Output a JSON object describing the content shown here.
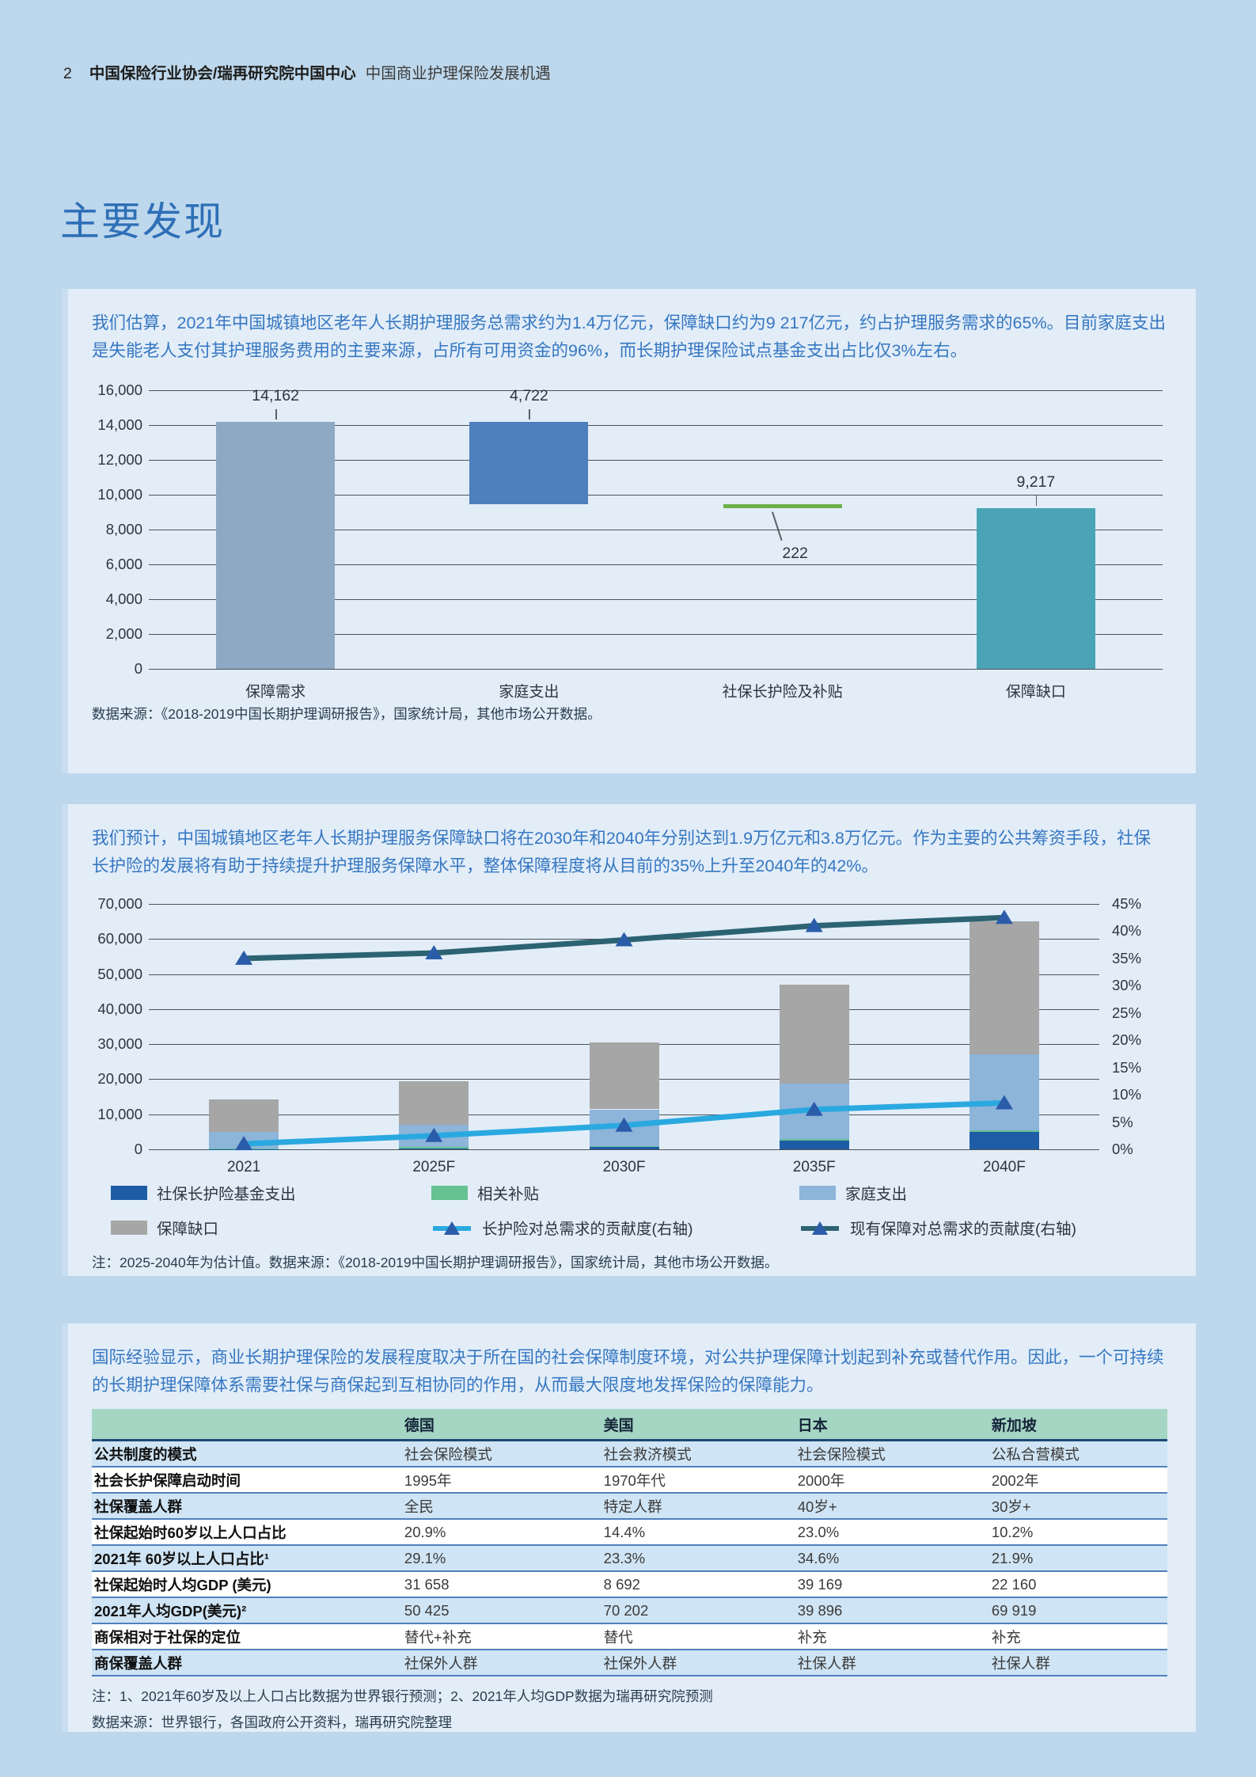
{
  "header": {
    "page_number": "2",
    "org": "中国保险行业协会/瑞再研究院中国中心",
    "doc_title": "中国商业护理保险发展机遇",
    "section_title": "主要发现"
  },
  "sections": [
    {
      "paragraph": "我们估算，2021年中国城镇地区老年人长期护理服务总需求约为1.4万亿元，保障缺口约为9 217亿元，约占护理服务需求的65%。目前家庭支出是失能老人支付其护理服务费用的主要来源，占所有可用资金的96%，而长期护理保险试点基金支出占比仅3%左右。",
      "source": "数据来源：《2018-2019中国长期护理调研报告》，国家统计局，其他市场公开数据。"
    },
    {
      "paragraph": "我们预计，中国城镇地区老年人长期护理服务保障缺口将在2030年和2040年分别达到1.9万亿元和3.8万亿元。作为主要的公共筹资手段，社保长护险的发展将有助于持续提升护理服务保障水平，整体保障程度将从目前的35%上升至2040年的42%。",
      "note": "注：2025-2040年为估计值。数据来源：《2018-2019中国长期护理调研报告》，国家统计局，其他市场公开数据。"
    },
    {
      "paragraph": "国际经验显示，商业长期护理保险的发展程度取决于所在国的社会保障制度环境，对公共护理保障计划起到补充或替代作用。因此，一个可持续的长期护理保障体系需要社保与商保起到互相协同的作用，从而最大限度地发挥保险的保障能力。",
      "note": "注：1、2021年60岁及以上人口占比数据为世界银行预测；2、2021年人均GDP数据为瑞再研究院预测",
      "source": "数据来源：世界银行，各国政府公开资料，瑞再研究院整理",
      "table": {
        "columns": [
          "",
          "德国",
          "美国",
          "日本",
          "新加坡"
        ],
        "rows": [
          [
            "公共制度的模式",
            "社会保险模式",
            "社会救济模式",
            "社会保险模式",
            "公私合营模式"
          ],
          [
            "社会长护保障启动时间",
            "1995年",
            "1970年代",
            "2000年",
            "2002年"
          ],
          [
            "社保覆盖人群",
            "全民",
            "特定人群",
            "40岁+",
            "30岁+"
          ],
          [
            "社保起始时60岁以上人口占比",
            "20.9%",
            "14.4%",
            "23.0%",
            "10.2%"
          ],
          [
            "2021年 60岁以上人口占比¹",
            "29.1%",
            "23.3%",
            "34.6%",
            "21.9%"
          ],
          [
            "社保起始时人均GDP (美元)",
            "31 658",
            "8 692",
            "39 169",
            "22 160"
          ],
          [
            "2021年人均GDP(美元)²",
            "50 425",
            "70 202",
            "39 896",
            "69 919"
          ],
          [
            "商保相对于社保的定位",
            "替代+补充",
            "替代",
            "补充",
            "补充"
          ],
          [
            "商保覆盖人群",
            "社保外人群",
            "社保外人群",
            "社保人群",
            "社保人群"
          ]
        ]
      }
    }
  ],
  "chart_data": [
    {
      "type": "bar",
      "subtype": "waterfall",
      "categories": [
        "保障需求",
        "家庭支出",
        "社保长护险及补贴",
        "保障缺口"
      ],
      "values": [
        14162,
        4722,
        222,
        9217
      ],
      "value_labels": [
        "14,162",
        "4,722",
        "222",
        "9,217"
      ],
      "segment_ranges": [
        [
          0,
          14162
        ],
        [
          9440,
          14162
        ],
        [
          9217,
          9439
        ],
        [
          0,
          9217
        ]
      ],
      "bar_colors": [
        "#8ea9c3",
        "#4d80bc",
        "#6cb04a",
        "#4ba4b5"
      ],
      "ylim": [
        0,
        16000
      ],
      "ytick_interval": 2000,
      "ytick_labels": [
        "0",
        "2,000",
        "4,000",
        "6,000",
        "8,000",
        "10,000",
        "12,000",
        "14,000",
        "16,000"
      ],
      "grid": true,
      "legend_position": "none"
    },
    {
      "type": "bar",
      "subtype": "stacked-bars-with-lines",
      "categories": [
        "2021",
        "2025F",
        "2030F",
        "2035F",
        "2040F"
      ],
      "series": [
        {
          "kind": "bar",
          "name": "社保长护险基金支出",
          "color": "#1e5da6",
          "values": [
            200,
            400,
            700,
            2500,
            5000
          ]
        },
        {
          "kind": "bar",
          "name": "相关补贴",
          "color": "#66c193",
          "values": [
            100,
            200,
            300,
            400,
            500
          ]
        },
        {
          "kind": "bar",
          "name": "家庭支出",
          "color": "#8db4d9",
          "values": [
            4700,
            6300,
            10400,
            15900,
            21500
          ]
        },
        {
          "kind": "bar",
          "name": "保障缺口",
          "color": "#a6a6a6",
          "values": [
            9217,
            12600,
            19000,
            28100,
            38000
          ]
        },
        {
          "kind": "line",
          "name": "长护险对总需求的贡献度(右轴)",
          "axis": "right",
          "color": "#2aa9e0",
          "marker_color": "#2b5ca9",
          "values": [
            1.0,
            2.5,
            4.4,
            7.3,
            8.5
          ]
        },
        {
          "kind": "line",
          "name": "现有保障对总需求的贡献度(右轴)",
          "axis": "right",
          "color": "#2c6372",
          "marker_color": "#2b5ca9",
          "values": [
            35,
            36,
            38.4,
            41,
            42.5
          ]
        }
      ],
      "ylim_left": [
        0,
        70000
      ],
      "ytick_labels_left": [
        "0",
        "10,000",
        "20,000",
        "30,000",
        "40,000",
        "50,000",
        "60,000",
        "70,000"
      ],
      "ylim_right_percent": [
        0,
        45
      ],
      "ytick_labels_right": [
        "0%",
        "5%",
        "10%",
        "15%",
        "20%",
        "25%",
        "30%",
        "35%",
        "40%",
        "45%"
      ],
      "grid": true,
      "legend_position": "bottom"
    }
  ]
}
